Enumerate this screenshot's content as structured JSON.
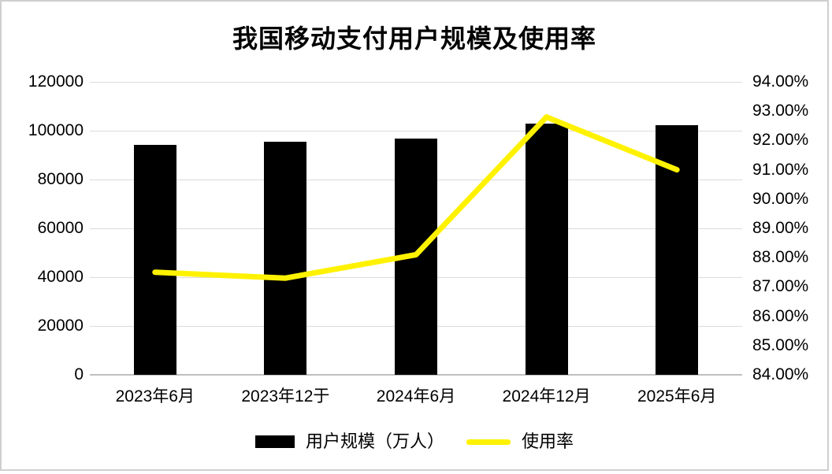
{
  "title": "我国移动支付用户规模及使用率",
  "chart_data": {
    "type": "bar",
    "subtype": "bar-line-combo",
    "categories": [
      "2023年6月",
      "2023年12于",
      "2024年6月",
      "2024年12月",
      "2025年6月"
    ],
    "series": [
      {
        "name": "用户规模（万人）",
        "type": "bar",
        "axis": "left",
        "color": "#000000",
        "values": [
          94300,
          95400,
          96900,
          102900,
          102200
        ]
      },
      {
        "name": "使用率",
        "type": "line",
        "axis": "right",
        "color": "#fff200",
        "values": [
          87.5,
          87.3,
          88.1,
          92.8,
          91.0
        ]
      }
    ],
    "left_axis": {
      "min": 0,
      "max": 120000,
      "step": 20000,
      "labels_top_to_bottom": [
        "120000",
        "100000",
        "80000",
        "60000",
        "40000",
        "20000",
        "0"
      ]
    },
    "right_axis": {
      "min": 84,
      "max": 94,
      "step": 1,
      "labels_top_to_bottom": [
        "94.00%",
        "93.00%",
        "92.00%",
        "91.00%",
        "90.00%",
        "89.00%",
        "88.00%",
        "87.00%",
        "86.00%",
        "85.00%",
        "84.00%"
      ]
    },
    "grid": "horizontal",
    "legend_position": "bottom-center"
  },
  "colors": {
    "bar": "#000000",
    "line": "#fff200",
    "gridline": "#dbdbdb",
    "axis_line": "#bfbfbf",
    "background": "#ffffff",
    "frame_border": "#cfcfcf",
    "text": "#000000"
  }
}
